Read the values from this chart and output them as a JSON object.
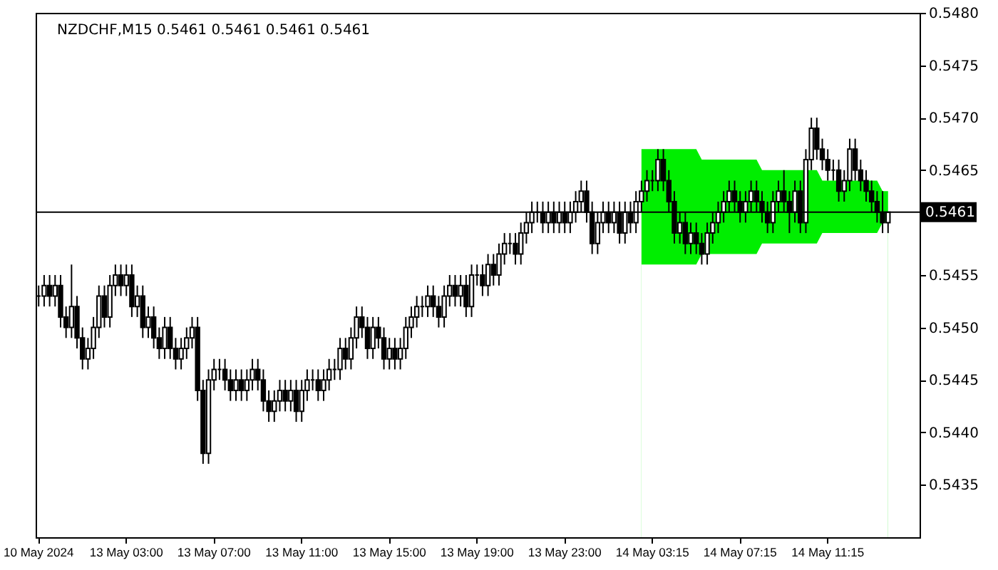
{
  "chart_data": {
    "type": "candlestick",
    "title": "NZDCHF,M15  0.5461 0.5461 0.5461 0.5461",
    "categories": [
      "10 May 2024",
      null,
      null,
      null,
      null,
      null,
      null,
      null,
      null,
      null,
      null,
      null,
      null,
      null,
      null,
      null,
      "13 May 03:00",
      null,
      null,
      null,
      null,
      null,
      null,
      null,
      null,
      null,
      null,
      null,
      null,
      null,
      null,
      null,
      "13 May 07:00",
      null,
      null,
      null,
      null,
      null,
      null,
      null,
      null,
      null,
      null,
      null,
      null,
      null,
      null,
      null,
      "13 May 11:00",
      null,
      null,
      null,
      null,
      null,
      null,
      null,
      null,
      null,
      null,
      null,
      null,
      null,
      null,
      null,
      "13 May 15:00",
      null,
      null,
      null,
      null,
      null,
      null,
      null,
      null,
      null,
      null,
      null,
      null,
      null,
      null,
      null,
      "13 May 19:00",
      null,
      null,
      null,
      null,
      null,
      null,
      null,
      null,
      null,
      null,
      null,
      null,
      null,
      null,
      null,
      "13 May 23:00",
      null,
      null,
      null,
      null,
      null,
      null,
      null,
      null,
      null,
      null,
      null,
      null,
      null,
      null,
      null,
      "14 May 03:15",
      null,
      null,
      null,
      null,
      null,
      null,
      null,
      null,
      null,
      null,
      null,
      null,
      null,
      null,
      null,
      "14 May 07:15",
      null,
      null,
      null,
      null,
      null,
      null,
      null,
      null,
      null,
      null,
      null,
      null,
      null,
      null,
      null,
      "14 May 11:15",
      null,
      null,
      null,
      null,
      null,
      null,
      null,
      null,
      null,
      null,
      null
    ],
    "ohlc": [
      [
        0.5453,
        0.5454,
        0.5452,
        0.5453
      ],
      [
        0.5453,
        0.5455,
        0.5452,
        0.5454
      ],
      [
        0.5454,
        0.5455,
        0.5452,
        0.5453
      ],
      [
        0.5453,
        0.5455,
        0.5452,
        0.5454
      ],
      [
        0.5454,
        0.5455,
        0.545,
        0.5451
      ],
      [
        0.5451,
        0.5452,
        0.5449,
        0.545
      ],
      [
        0.545,
        0.5456,
        0.5449,
        0.5452
      ],
      [
        0.5452,
        0.5453,
        0.5448,
        0.5449
      ],
      [
        0.5449,
        0.545,
        0.5446,
        0.5447
      ],
      [
        0.5447,
        0.5449,
        0.5446,
        0.5448
      ],
      [
        0.5448,
        0.5451,
        0.5447,
        0.545
      ],
      [
        0.545,
        0.5454,
        0.5449,
        0.5453
      ],
      [
        0.5453,
        0.5454,
        0.545,
        0.5451
      ],
      [
        0.5451,
        0.5455,
        0.545,
        0.5454
      ],
      [
        0.5454,
        0.5456,
        0.5453,
        0.5455
      ],
      [
        0.5455,
        0.5456,
        0.5453,
        0.5454
      ],
      [
        0.5454,
        0.5456,
        0.5453,
        0.5455
      ],
      [
        0.5455,
        0.5456,
        0.5451,
        0.5452
      ],
      [
        0.5452,
        0.5454,
        0.5451,
        0.5453
      ],
      [
        0.5453,
        0.5454,
        0.5449,
        0.545
      ],
      [
        0.545,
        0.5452,
        0.5449,
        0.5451
      ],
      [
        0.5451,
        0.5452,
        0.5448,
        0.5449
      ],
      [
        0.5449,
        0.545,
        0.5447,
        0.5448
      ],
      [
        0.5448,
        0.5451,
        0.5447,
        0.545
      ],
      [
        0.545,
        0.5451,
        0.5447,
        0.5448
      ],
      [
        0.5448,
        0.5449,
        0.5446,
        0.5447
      ],
      [
        0.5447,
        0.5449,
        0.5446,
        0.5448
      ],
      [
        0.5448,
        0.545,
        0.5447,
        0.5449
      ],
      [
        0.5449,
        0.5451,
        0.5448,
        0.545
      ],
      [
        0.545,
        0.5451,
        0.5443,
        0.5444
      ],
      [
        0.5444,
        0.5445,
        0.5437,
        0.5438
      ],
      [
        0.5438,
        0.5446,
        0.5437,
        0.5445
      ],
      [
        0.5445,
        0.5447,
        0.5444,
        0.5446
      ],
      [
        0.5446,
        0.5447,
        0.5445,
        0.5446
      ],
      [
        0.5446,
        0.5447,
        0.5444,
        0.5445
      ],
      [
        0.5445,
        0.5446,
        0.5443,
        0.5444
      ],
      [
        0.5444,
        0.5446,
        0.5443,
        0.5445
      ],
      [
        0.5445,
        0.5446,
        0.5443,
        0.5444
      ],
      [
        0.5444,
        0.5446,
        0.5443,
        0.5445
      ],
      [
        0.5445,
        0.5447,
        0.5444,
        0.5446
      ],
      [
        0.5446,
        0.5447,
        0.5444,
        0.5445
      ],
      [
        0.5445,
        0.5446,
        0.5442,
        0.5443
      ],
      [
        0.5443,
        0.5444,
        0.5441,
        0.5442
      ],
      [
        0.5442,
        0.5444,
        0.5441,
        0.5443
      ],
      [
        0.5443,
        0.5445,
        0.5442,
        0.5444
      ],
      [
        0.5444,
        0.5445,
        0.5442,
        0.5443
      ],
      [
        0.5443,
        0.5445,
        0.5442,
        0.5444
      ],
      [
        0.5444,
        0.5445,
        0.5441,
        0.5442
      ],
      [
        0.5442,
        0.5445,
        0.5441,
        0.5444
      ],
      [
        0.5444,
        0.5446,
        0.5443,
        0.5445
      ],
      [
        0.5445,
        0.5446,
        0.5444,
        0.5445
      ],
      [
        0.5445,
        0.5446,
        0.5443,
        0.5444
      ],
      [
        0.5444,
        0.5446,
        0.5443,
        0.5445
      ],
      [
        0.5445,
        0.5447,
        0.5444,
        0.5446
      ],
      [
        0.5446,
        0.5447,
        0.5445,
        0.5446
      ],
      [
        0.5446,
        0.5449,
        0.5445,
        0.5448
      ],
      [
        0.5448,
        0.5449,
        0.5446,
        0.5447
      ],
      [
        0.5447,
        0.545,
        0.5446,
        0.5449
      ],
      [
        0.5449,
        0.5452,
        0.5448,
        0.5451
      ],
      [
        0.5451,
        0.5452,
        0.5449,
        0.545
      ],
      [
        0.545,
        0.5451,
        0.5447,
        0.5448
      ],
      [
        0.5448,
        0.5451,
        0.5447,
        0.545
      ],
      [
        0.545,
        0.5451,
        0.5448,
        0.5449
      ],
      [
        0.5449,
        0.545,
        0.5446,
        0.5447
      ],
      [
        0.5447,
        0.5449,
        0.5446,
        0.5448
      ],
      [
        0.5448,
        0.5449,
        0.5446,
        0.5447
      ],
      [
        0.5447,
        0.5449,
        0.5446,
        0.5448
      ],
      [
        0.5448,
        0.5451,
        0.5447,
        0.545
      ],
      [
        0.545,
        0.5452,
        0.5449,
        0.5451
      ],
      [
        0.5451,
        0.5453,
        0.545,
        0.5452
      ],
      [
        0.5452,
        0.5453,
        0.5451,
        0.5452
      ],
      [
        0.5452,
        0.5454,
        0.5451,
        0.5453
      ],
      [
        0.5453,
        0.5454,
        0.5451,
        0.5452
      ],
      [
        0.5452,
        0.5453,
        0.545,
        0.5451
      ],
      [
        0.5451,
        0.5454,
        0.545,
        0.5453
      ],
      [
        0.5453,
        0.5455,
        0.5452,
        0.5454
      ],
      [
        0.5454,
        0.5455,
        0.5452,
        0.5453
      ],
      [
        0.5453,
        0.5455,
        0.5452,
        0.5454
      ],
      [
        0.5454,
        0.5455,
        0.5451,
        0.5452
      ],
      [
        0.5452,
        0.5456,
        0.5451,
        0.5455
      ],
      [
        0.5455,
        0.5456,
        0.5454,
        0.5455
      ],
      [
        0.5455,
        0.5456,
        0.5453,
        0.5454
      ],
      [
        0.5454,
        0.5457,
        0.5453,
        0.5456
      ],
      [
        0.5456,
        0.5457,
        0.5454,
        0.5455
      ],
      [
        0.5455,
        0.5458,
        0.5454,
        0.5457
      ],
      [
        0.5457,
        0.5459,
        0.5456,
        0.5458
      ],
      [
        0.5458,
        0.5459,
        0.5457,
        0.5458
      ],
      [
        0.5458,
        0.5459,
        0.5456,
        0.5457
      ],
      [
        0.5457,
        0.546,
        0.5456,
        0.5459
      ],
      [
        0.5459,
        0.5461,
        0.5458,
        0.546
      ],
      [
        0.546,
        0.5462,
        0.5459,
        0.5461
      ],
      [
        0.5461,
        0.5462,
        0.546,
        0.5461
      ],
      [
        0.5461,
        0.5462,
        0.5459,
        0.546
      ],
      [
        0.546,
        0.5462,
        0.5459,
        0.5461
      ],
      [
        0.5461,
        0.5462,
        0.5459,
        0.546
      ],
      [
        0.546,
        0.5462,
        0.5459,
        0.5461
      ],
      [
        0.5461,
        0.5462,
        0.5459,
        0.546
      ],
      [
        0.546,
        0.5462,
        0.5459,
        0.5461
      ],
      [
        0.5461,
        0.5463,
        0.546,
        0.5462
      ],
      [
        0.5462,
        0.5464,
        0.5461,
        0.5463
      ],
      [
        0.5463,
        0.5464,
        0.546,
        0.5461
      ],
      [
        0.5461,
        0.5462,
        0.5457,
        0.5458
      ],
      [
        0.5458,
        0.5461,
        0.5457,
        0.546
      ],
      [
        0.546,
        0.5462,
        0.5459,
        0.5461
      ],
      [
        0.5461,
        0.5462,
        0.5459,
        0.546
      ],
      [
        0.546,
        0.5462,
        0.5459,
        0.5461
      ],
      [
        0.5461,
        0.5462,
        0.5458,
        0.5459
      ],
      [
        0.5459,
        0.5462,
        0.5458,
        0.5461
      ],
      [
        0.5461,
        0.5462,
        0.5459,
        0.546
      ],
      [
        0.546,
        0.5463,
        0.5459,
        0.5462
      ],
      [
        0.5462,
        0.5464,
        0.5461,
        0.5463
      ],
      [
        0.5463,
        0.5465,
        0.5462,
        0.5464
      ],
      [
        0.5464,
        0.5465,
        0.5463,
        0.5464
      ],
      [
        0.5464,
        0.5467,
        0.5463,
        0.5466
      ],
      [
        0.5466,
        0.5467,
        0.5463,
        0.5464
      ],
      [
        0.5464,
        0.5465,
        0.5461,
        0.5462
      ],
      [
        0.5462,
        0.5463,
        0.5458,
        0.5459
      ],
      [
        0.5459,
        0.5461,
        0.5458,
        0.546
      ],
      [
        0.546,
        0.5461,
        0.5457,
        0.5458
      ],
      [
        0.5458,
        0.546,
        0.5457,
        0.5459
      ],
      [
        0.5459,
        0.546,
        0.5457,
        0.5458
      ],
      [
        0.5458,
        0.5459,
        0.5456,
        0.5457
      ],
      [
        0.5457,
        0.546,
        0.5456,
        0.5459
      ],
      [
        0.5459,
        0.5461,
        0.5458,
        0.546
      ],
      [
        0.546,
        0.5462,
        0.5459,
        0.5461
      ],
      [
        0.5461,
        0.5463,
        0.546,
        0.5462
      ],
      [
        0.5462,
        0.5464,
        0.5461,
        0.5463
      ],
      [
        0.5463,
        0.5464,
        0.5461,
        0.5462
      ],
      [
        0.5462,
        0.5463,
        0.546,
        0.5461
      ],
      [
        0.5461,
        0.5463,
        0.546,
        0.5462
      ],
      [
        0.5462,
        0.5464,
        0.5461,
        0.5463
      ],
      [
        0.5463,
        0.5464,
        0.5461,
        0.5462
      ],
      [
        0.5462,
        0.5463,
        0.546,
        0.5461
      ],
      [
        0.5461,
        0.5462,
        0.5459,
        0.546
      ],
      [
        0.546,
        0.5463,
        0.5459,
        0.5462
      ],
      [
        0.5462,
        0.5464,
        0.5461,
        0.5463
      ],
      [
        0.5463,
        0.5465,
        0.5461,
        0.5462
      ],
      [
        0.5462,
        0.5463,
        0.5459,
        0.5461
      ],
      [
        0.5461,
        0.5464,
        0.546,
        0.5463
      ],
      [
        0.5463,
        0.5464,
        0.5459,
        0.546
      ],
      [
        0.546,
        0.5467,
        0.5459,
        0.5466
      ],
      [
        0.5466,
        0.547,
        0.5465,
        0.5469
      ],
      [
        0.5469,
        0.547,
        0.5466,
        0.5467
      ],
      [
        0.5467,
        0.5468,
        0.5465,
        0.5466
      ],
      [
        0.5466,
        0.5467,
        0.5464,
        0.5465
      ],
      [
        0.5465,
        0.5466,
        0.5464,
        0.5465
      ],
      [
        0.5465,
        0.5466,
        0.5462,
        0.5463
      ],
      [
        0.5463,
        0.5465,
        0.5462,
        0.5464
      ],
      [
        0.5464,
        0.5468,
        0.5463,
        0.5467
      ],
      [
        0.5467,
        0.5468,
        0.5464,
        0.5465
      ],
      [
        0.5465,
        0.5466,
        0.5463,
        0.5464
      ],
      [
        0.5464,
        0.5465,
        0.5462,
        0.5463
      ],
      [
        0.5463,
        0.5464,
        0.5461,
        0.5462
      ],
      [
        0.5462,
        0.5463,
        0.546,
        0.5461
      ],
      [
        0.5461,
        0.5463,
        0.5459,
        0.546
      ],
      [
        0.546,
        0.5461,
        0.5459,
        0.5461
      ]
    ],
    "series": [
      {
        "type": "area",
        "color": "#00ee00",
        "values": [
          null,
          null,
          null,
          null,
          null,
          null,
          null,
          null,
          null,
          null,
          null,
          null,
          null,
          null,
          null,
          null,
          null,
          null,
          null,
          null,
          null,
          null,
          null,
          null,
          null,
          null,
          null,
          null,
          null,
          null,
          null,
          null,
          null,
          null,
          null,
          null,
          null,
          null,
          null,
          null,
          null,
          null,
          null,
          null,
          null,
          null,
          null,
          null,
          null,
          null,
          null,
          null,
          null,
          null,
          null,
          null,
          null,
          null,
          null,
          null,
          null,
          null,
          null,
          null,
          null,
          null,
          null,
          null,
          null,
          null,
          null,
          null,
          null,
          null,
          null,
          null,
          null,
          null,
          null,
          null,
          null,
          null,
          null,
          null,
          null,
          null,
          null,
          null,
          null,
          null,
          null,
          null,
          null,
          null,
          null,
          null,
          null,
          null,
          null,
          null,
          null,
          null,
          null,
          null,
          null,
          null,
          null,
          null,
          null,
          null,
          0.5467,
          0.5467,
          0.5467,
          0.5467,
          0.5467,
          0.5467,
          0.5467,
          0.5467,
          0.5467,
          0.5467,
          0.5467,
          0.5466,
          0.5466,
          0.5466,
          0.5466,
          0.5466,
          0.5466,
          0.5466,
          0.5466,
          0.5466,
          0.5466,
          0.5466,
          0.5465,
          0.5465,
          0.5465,
          0.5465,
          0.5465,
          0.5465,
          0.5465,
          0.5465,
          0.5465,
          0.5465,
          0.5465,
          0.5464,
          0.5464,
          0.5464,
          0.5464,
          0.5464,
          0.5464,
          0.5464,
          0.5464,
          0.5464,
          0.5464,
          0.5464,
          0.5463,
          0.5463
        ]
      },
      {
        "type": "area",
        "color": "#ffffff",
        "values": [
          null,
          null,
          null,
          null,
          null,
          null,
          null,
          null,
          null,
          null,
          null,
          null,
          null,
          null,
          null,
          null,
          null,
          null,
          null,
          null,
          null,
          null,
          null,
          null,
          null,
          null,
          null,
          null,
          null,
          null,
          null,
          null,
          null,
          null,
          null,
          null,
          null,
          null,
          null,
          null,
          null,
          null,
          null,
          null,
          null,
          null,
          null,
          null,
          null,
          null,
          null,
          null,
          null,
          null,
          null,
          null,
          null,
          null,
          null,
          null,
          null,
          null,
          null,
          null,
          null,
          null,
          null,
          null,
          null,
          null,
          null,
          null,
          null,
          null,
          null,
          null,
          null,
          null,
          null,
          null,
          null,
          null,
          null,
          null,
          null,
          null,
          null,
          null,
          null,
          null,
          null,
          null,
          null,
          null,
          null,
          null,
          null,
          null,
          null,
          null,
          null,
          null,
          null,
          null,
          null,
          null,
          null,
          null,
          null,
          null,
          0.5456,
          0.5456,
          0.5456,
          0.5456,
          0.5456,
          0.5456,
          0.5456,
          0.5456,
          0.5456,
          0.5456,
          0.5456,
          0.5457,
          0.5457,
          0.5457,
          0.5457,
          0.5457,
          0.5457,
          0.5457,
          0.5457,
          0.5457,
          0.5457,
          0.5457,
          0.5458,
          0.5458,
          0.5458,
          0.5458,
          0.5458,
          0.5458,
          0.5458,
          0.5458,
          0.5458,
          0.5458,
          0.5458,
          0.5459,
          0.5459,
          0.5459,
          0.5459,
          0.5459,
          0.5459,
          0.5459,
          0.5459,
          0.5459,
          0.5459,
          0.5459,
          0.546,
          0.546
        ]
      }
    ],
    "ylim": [
      0.543,
      0.548
    ],
    "yticks": [
      0.5435,
      {
        "value": 0.544,
        "label": "0.5440"
      },
      0.5445,
      {
        "value": 0.545,
        "label": "0.5450"
      },
      0.5455,
      0.5465,
      {
        "value": 0.547,
        "label": "0.5470"
      },
      0.5475,
      {
        "value": 0.548,
        "label": "0.5480"
      }
    ],
    "ref_lines": [
      {
        "axis": "y",
        "value": 0.5461,
        "label": "0.5461",
        "color": "#000000"
      }
    ]
  }
}
